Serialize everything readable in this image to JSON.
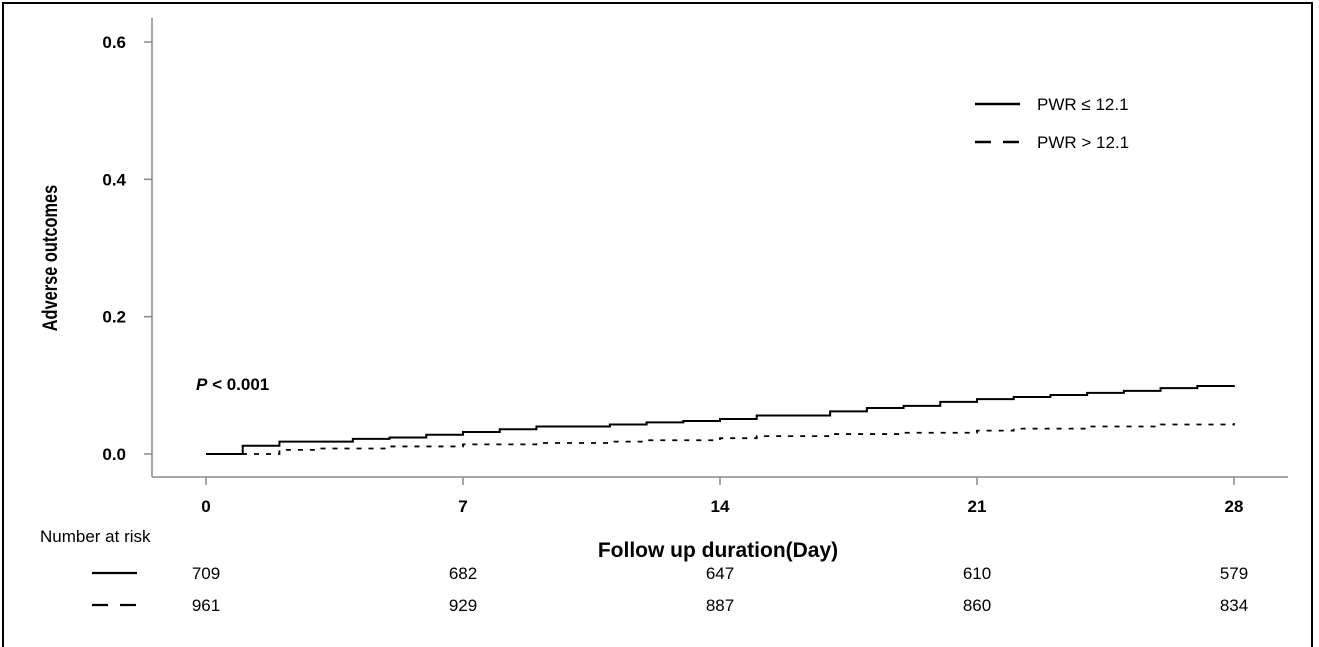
{
  "chart_data": {
    "type": "line",
    "xlabel": "Follow up duration(Day)",
    "ylabel": "Adverse outcomes",
    "xlim": [
      0,
      28
    ],
    "ylim": [
      0,
      0.6
    ],
    "xticks": [
      0,
      7,
      14,
      21,
      28
    ],
    "xtick_labels": [
      "0",
      "7",
      "14",
      "21",
      "28"
    ],
    "yticks": [
      0.0,
      0.2,
      0.4,
      0.6
    ],
    "ytick_labels": [
      "0.0",
      "0.2",
      "0.4",
      "0.6"
    ],
    "legend_position": "top-right",
    "grid": false,
    "annotation": {
      "p_italic": "P",
      "p_rest": " < 0.001"
    },
    "series": [
      {
        "name": "PWR ≤ 12.1",
        "style": "solid",
        "color": "#000000",
        "x": [
          0,
          1,
          2,
          4,
          5,
          6,
          7,
          8,
          9,
          11,
          12,
          13,
          14,
          15,
          17,
          18,
          19,
          20,
          21,
          22,
          23,
          24,
          25,
          26,
          27,
          28
        ],
        "y": [
          0.0,
          0.012,
          0.018,
          0.022,
          0.024,
          0.028,
          0.032,
          0.036,
          0.04,
          0.043,
          0.046,
          0.048,
          0.051,
          0.056,
          0.062,
          0.067,
          0.07,
          0.076,
          0.08,
          0.083,
          0.086,
          0.089,
          0.092,
          0.096,
          0.099,
          0.1
        ]
      },
      {
        "name": "PWR > 12.1",
        "style": "dashed",
        "color": "#000000",
        "x": [
          0,
          2,
          3,
          5,
          7,
          9,
          11,
          12,
          14,
          15,
          17,
          19,
          21,
          22,
          24,
          26,
          28
        ],
        "y": [
          0.0,
          0.006,
          0.008,
          0.011,
          0.014,
          0.016,
          0.018,
          0.02,
          0.023,
          0.026,
          0.029,
          0.031,
          0.034,
          0.037,
          0.04,
          0.043,
          0.045
        ]
      }
    ],
    "risk_table": {
      "title": "Number at risk",
      "rows": [
        {
          "series": "PWR ≤ 12.1",
          "style": "solid",
          "values": [
            "709",
            "682",
            "647",
            "610",
            "579"
          ]
        },
        {
          "series": "PWR > 12.1",
          "style": "dashed",
          "values": [
            "961",
            "929",
            "887",
            "860",
            "834"
          ]
        }
      ]
    }
  }
}
